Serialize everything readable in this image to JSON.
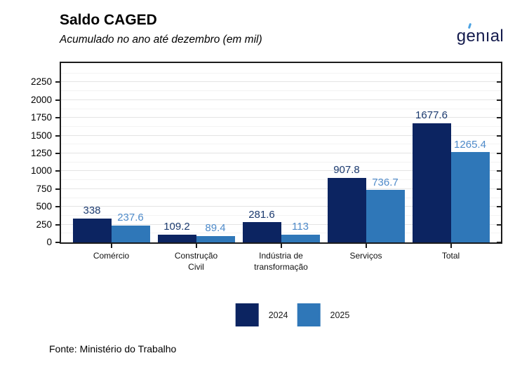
{
  "header": {
    "title": "Saldo CAGED",
    "subtitle": "Acumulado no ano até dezembro (em mil)"
  },
  "logo": {
    "brand": "genial",
    "text_g": "g",
    "text_e": "e",
    "text_rest": "nıal",
    "navy_color": "#141b4d",
    "accent_color": "#4ba2e2"
  },
  "chart_data": {
    "type": "bar",
    "title": "Saldo CAGED",
    "subtitle": "Acumulado no ano até dezembro (em mil)",
    "categories": [
      "Comércio",
      "Construção Civil",
      "Indústria de transformação",
      "Serviços",
      "Total"
    ],
    "category_lines": [
      [
        "Comércio"
      ],
      [
        "Construção",
        "Civil"
      ],
      [
        "Indústria de",
        "transformação"
      ],
      [
        "Serviços"
      ],
      [
        "Total"
      ]
    ],
    "series": [
      {
        "name": "2024",
        "color": "#0c2461",
        "label_color": "#1b3a6f",
        "values": [
          338,
          109.2,
          281.6,
          907.8,
          1677.6
        ],
        "labels": [
          "338",
          "109.2",
          "281.6",
          "907.8",
          "1677.6"
        ]
      },
      {
        "name": "2025",
        "color": "#2f77b8",
        "label_color": "#4e8ac9",
        "values": [
          237.6,
          89.4,
          113,
          736.7,
          1265.4
        ],
        "labels": [
          "237.6",
          "89.4",
          "113",
          "736.7",
          "1265.4"
        ]
      }
    ],
    "y_axis": {
      "min": 0,
      "max_tick": 2250,
      "tick_step": 250,
      "ticks": [
        0,
        250,
        500,
        750,
        1000,
        1250,
        1500,
        1750,
        2000,
        2250
      ]
    },
    "ylim": [
      0,
      2480
    ],
    "grid": true,
    "legend_position": "bottom",
    "frame_color": "#1c1c1c",
    "grid_major_color": "#e4e4e4",
    "grid_minor_color": "#f3f3f3"
  },
  "footer": {
    "source": "Fonte: Ministério do Trabalho"
  }
}
